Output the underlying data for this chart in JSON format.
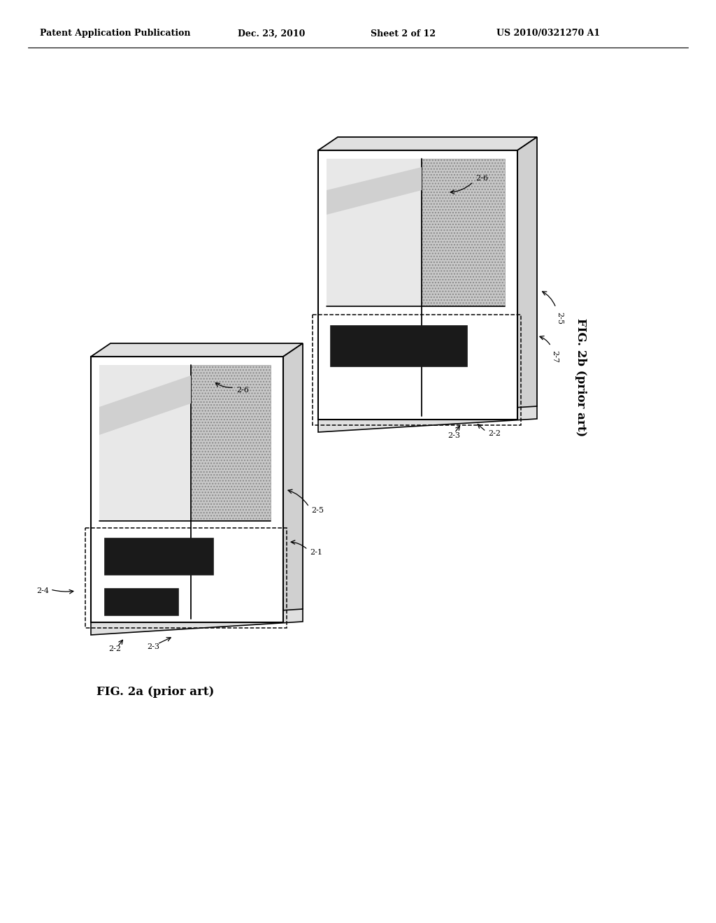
{
  "background_color": "#ffffff",
  "header_text": "Patent Application Publication",
  "header_date": "Dec. 23, 2010",
  "header_sheet": "Sheet 2 of 12",
  "header_patent": "US 2010/0321270 A1",
  "fig2a_label": "FIG. 2a (prior art)",
  "fig2b_label": "FIG. 2b (prior art)",
  "panel_face_color": "#f0f0f0",
  "panel_side_color": "#d0d0d0",
  "panel_top_color": "#e0e0e0",
  "hatch_color": "#c8c8c8",
  "slot_color": "#1a1a1a",
  "gray_strip_color": "#b0b0b0"
}
